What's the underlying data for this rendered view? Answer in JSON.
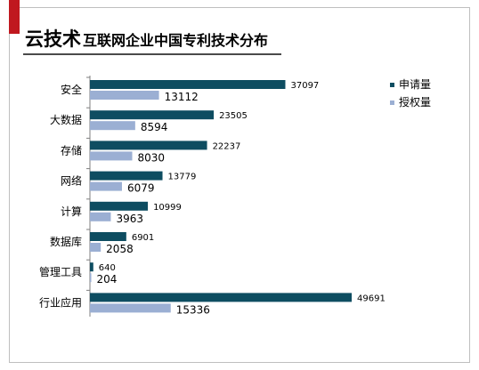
{
  "header": {
    "title_main": "云技术",
    "title_sub": "互联网企业中国专利技术分布"
  },
  "colors": {
    "accent": "#c0181f",
    "series_1": "#0e4d61",
    "series_2": "#9bafd3"
  },
  "chart_data": {
    "type": "bar",
    "orientation": "horizontal",
    "title": "云技术互联网企业中国专利技术分布",
    "categories": [
      "安全",
      "大数据",
      "存储",
      "网络",
      "计算",
      "数据库",
      "管理工具",
      "行业应用"
    ],
    "series": [
      {
        "name": "申请量",
        "values": [
          37097,
          23505,
          22237,
          13779,
          10999,
          6901,
          640,
          49691
        ]
      },
      {
        "name": "授权量",
        "values": [
          13112,
          8594,
          8030,
          6079,
          3963,
          2058,
          204,
          15336
        ]
      }
    ],
    "xlim": [
      0,
      58000
    ],
    "grid": false,
    "legend_position": "top-right"
  }
}
